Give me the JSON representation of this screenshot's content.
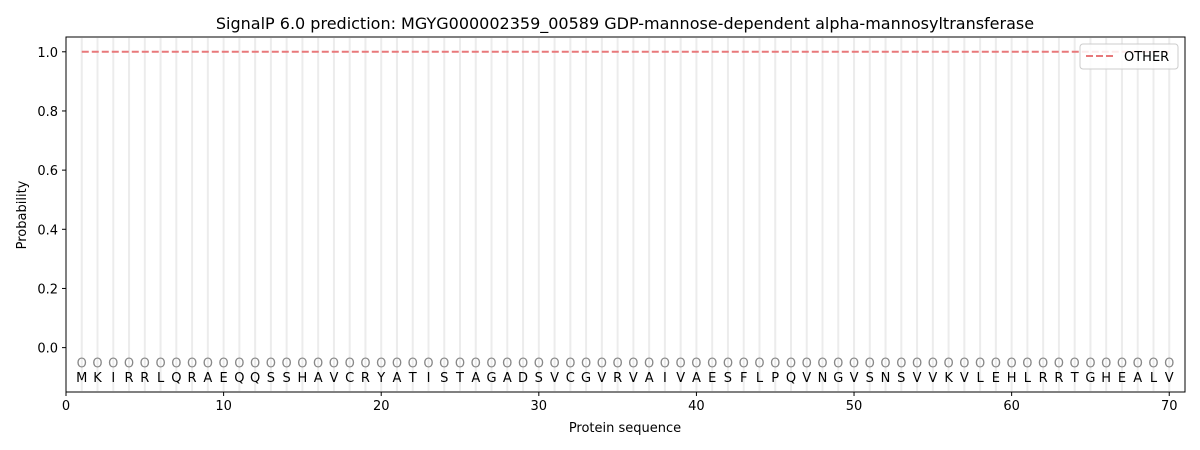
{
  "chart_data": {
    "type": "line",
    "title": "SignalP 6.0 prediction: MGYG000002359_00589 GDP-mannose-dependent alpha-mannosyltransferase",
    "xlabel": "Protein sequence",
    "ylabel": "Probability",
    "xlim": [
      0,
      71
    ],
    "ylim": [
      -0.15,
      1.05
    ],
    "xticks": [
      0,
      10,
      20,
      30,
      40,
      50,
      60,
      70
    ],
    "yticks": [
      0.0,
      0.2,
      0.4,
      0.6,
      0.8,
      1.0
    ],
    "ytick_labels": [
      "0.0",
      "0.2",
      "0.4",
      "0.6",
      "0.8",
      "1.0"
    ],
    "grid": "vertical lines at each residue",
    "legend_position": "top-right",
    "sequence": [
      "M",
      "K",
      "I",
      "R",
      "R",
      "L",
      "Q",
      "R",
      "A",
      "E",
      "Q",
      "Q",
      "S",
      "S",
      "H",
      "A",
      "V",
      "C",
      "R",
      "Y",
      "A",
      "T",
      "I",
      "S",
      "T",
      "A",
      "G",
      "A",
      "D",
      "S",
      "V",
      "C",
      "G",
      "V",
      "R",
      "V",
      "A",
      "I",
      "V",
      "A",
      "E",
      "S",
      "F",
      "L",
      "P",
      "Q",
      "V",
      "N",
      "G",
      "V",
      "S",
      "N",
      "S",
      "V",
      "V",
      "K",
      "V",
      "L",
      "E",
      "H",
      "L",
      "R",
      "R",
      "T",
      "G",
      "H",
      "E",
      "A",
      "L",
      "V"
    ],
    "predicted_labels": [
      "O",
      "O",
      "O",
      "O",
      "O",
      "O",
      "O",
      "O",
      "O",
      "O",
      "O",
      "O",
      "O",
      "O",
      "O",
      "O",
      "O",
      "O",
      "O",
      "O",
      "O",
      "O",
      "O",
      "O",
      "O",
      "O",
      "O",
      "O",
      "O",
      "O",
      "O",
      "O",
      "O",
      "O",
      "O",
      "O",
      "O",
      "O",
      "O",
      "O",
      "O",
      "O",
      "O",
      "O",
      "O",
      "O",
      "O",
      "O",
      "O",
      "O",
      "O",
      "O",
      "O",
      "O",
      "O",
      "O",
      "O",
      "O",
      "O",
      "O",
      "O",
      "O",
      "O",
      "O",
      "O",
      "O",
      "O",
      "O",
      "O",
      "O"
    ],
    "series": [
      {
        "name": "OTHER",
        "color": "#e8787a",
        "style": "dashed",
        "x_start": 1,
        "x_end": 70,
        "value": 1.0
      }
    ]
  }
}
